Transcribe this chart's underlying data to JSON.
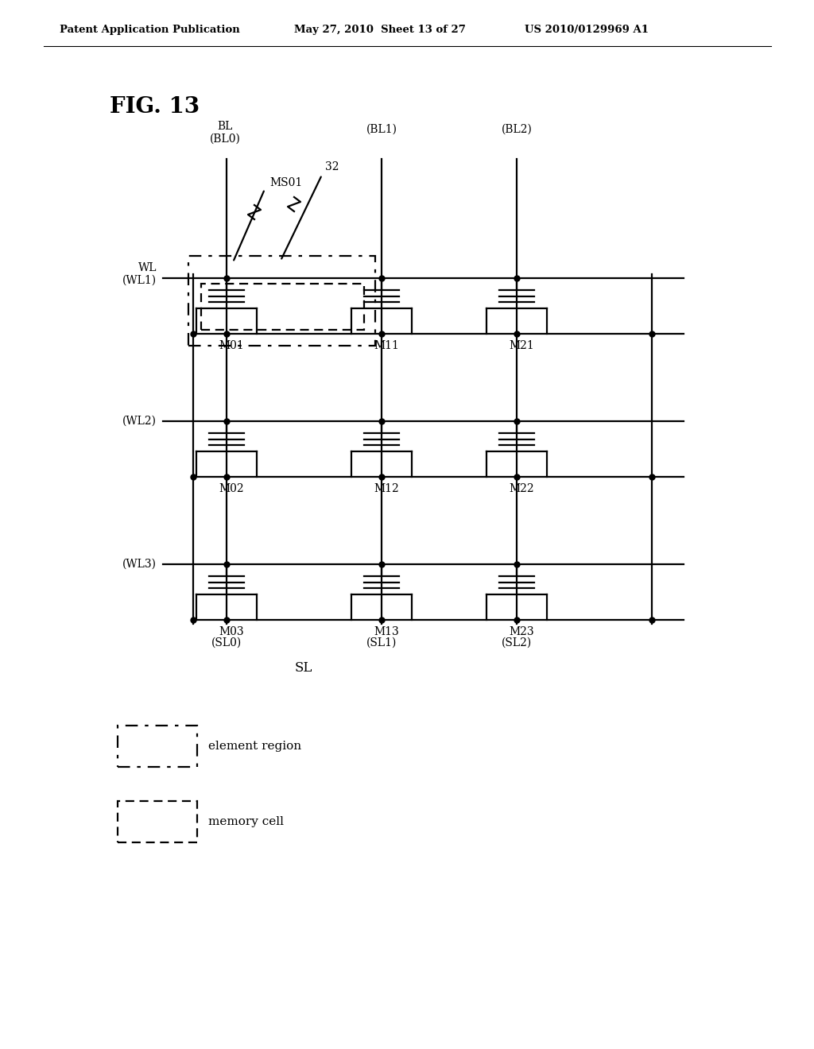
{
  "header_left": "Patent Application Publication",
  "header_center": "May 27, 2010  Sheet 13 of 27",
  "header_right": "US 2010/0129969 A1",
  "fig_title": "FIG. 13",
  "wl_labels": [
    "WL\n(WL1)",
    "(WL2)",
    "(WL3)"
  ],
  "bl_labels": [
    "BL\n(BL0)",
    "(BL1)",
    "(BL2)"
  ],
  "sl_labels": [
    "(SL0)",
    "(SL1)",
    "(SL2)"
  ],
  "sl_main": "SL",
  "tr_labels": [
    [
      "M01",
      "M11",
      "M21"
    ],
    [
      "M02",
      "M12",
      "M22"
    ],
    [
      "M03",
      "M13",
      "M23"
    ]
  ],
  "legend_er": "element region",
  "legend_mc": "memory cell",
  "lw": 1.6
}
